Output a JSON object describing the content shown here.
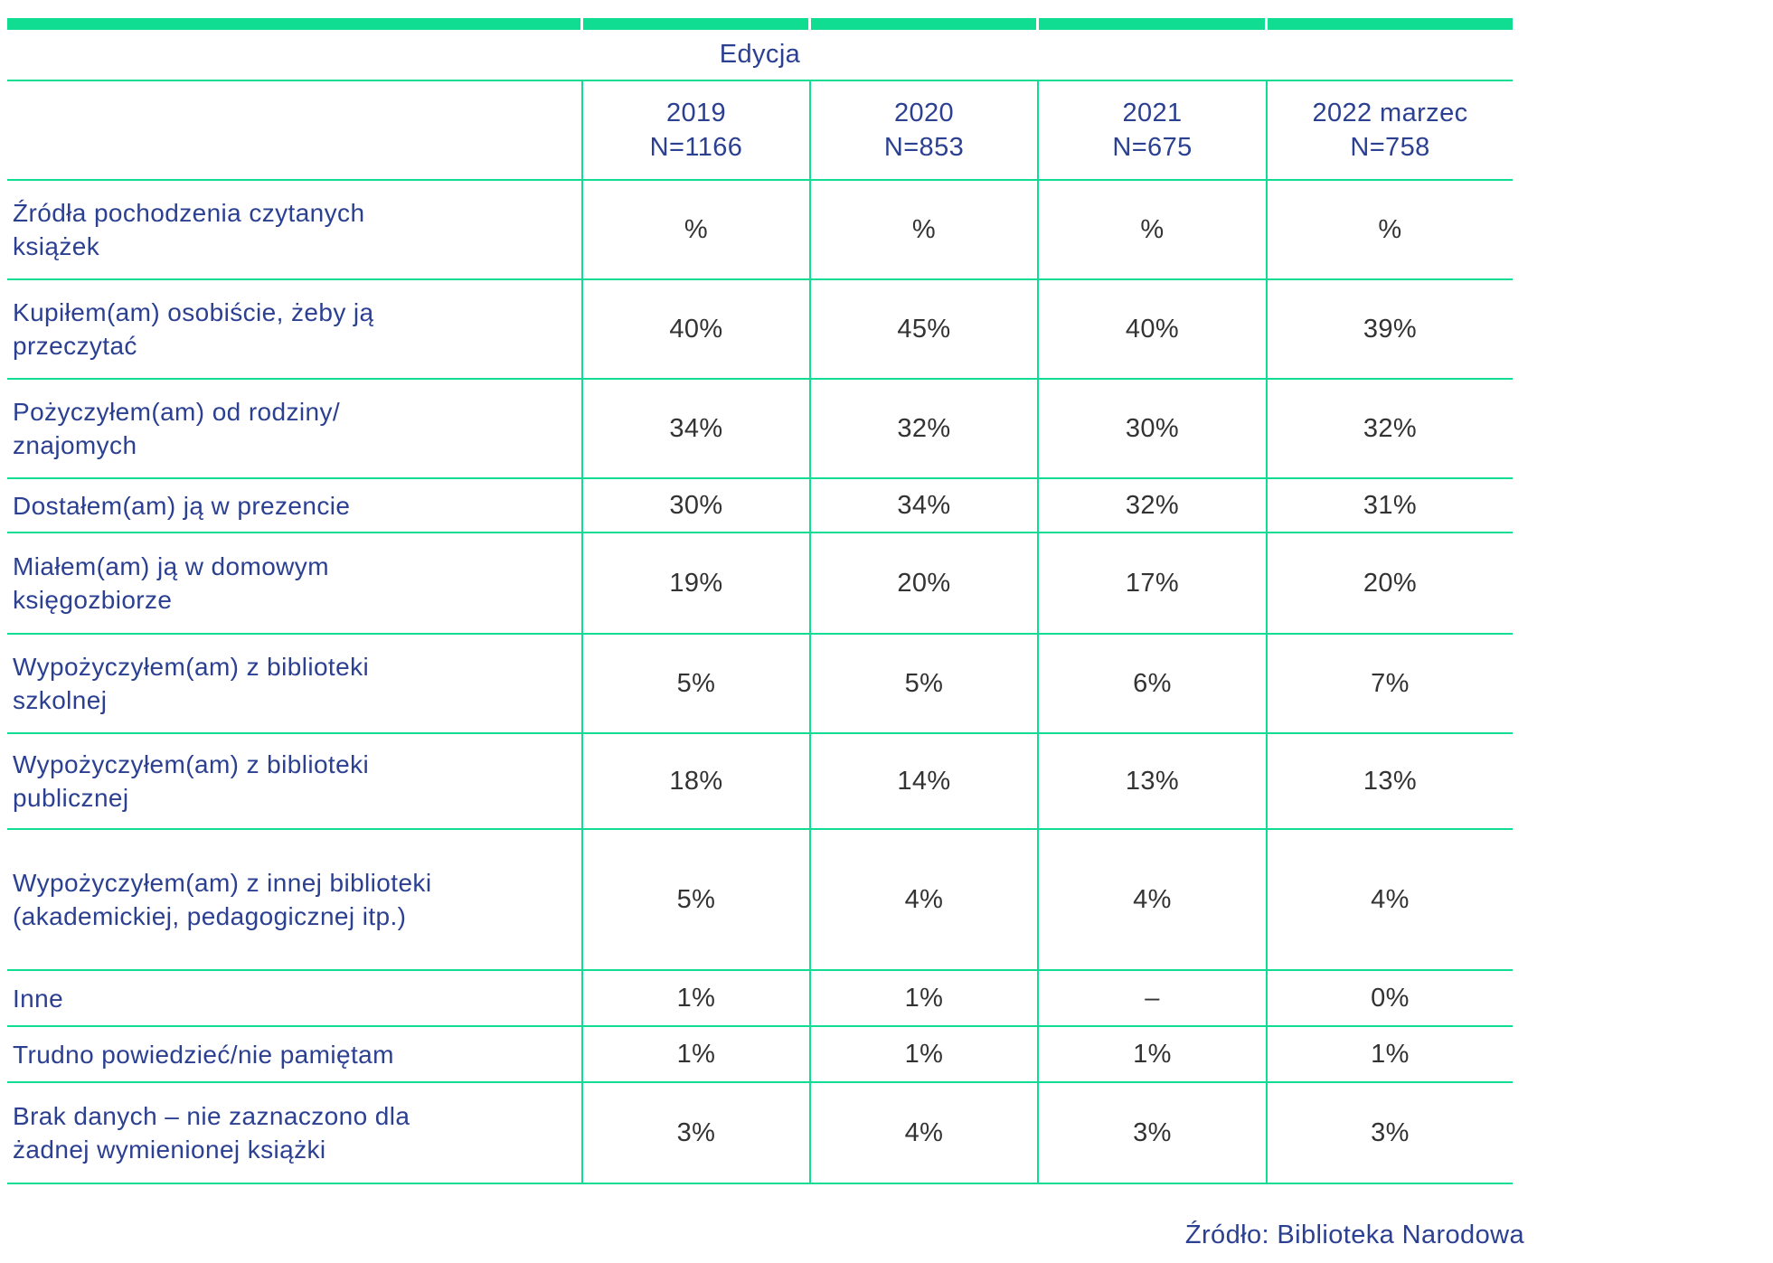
{
  "chart_data": {
    "type": "table",
    "group_header": "Edycja",
    "columns": [
      {
        "label": "2019",
        "n_label": "N=1166"
      },
      {
        "label": "2020",
        "n_label": "N=853"
      },
      {
        "label": "2021",
        "n_label": "N=675"
      },
      {
        "label": "2022 marzec",
        "n_label": "N=758"
      }
    ],
    "stub_header": "Źródła pochodzenia czytanych książek",
    "unit_row_values": [
      "%",
      "%",
      "%",
      "%"
    ],
    "rows": [
      {
        "label": "Kupiłem(am) osobiście, żeby ją przeczytać",
        "values": [
          "40%",
          "45%",
          "40%",
          "39%"
        ]
      },
      {
        "label": "Pożyczyłem(am) od rodziny/ znajomych",
        "values": [
          "34%",
          "32%",
          "30%",
          "32%"
        ]
      },
      {
        "label": "Dostałem(am) ją w prezencie",
        "values": [
          "30%",
          "34%",
          "32%",
          "31%"
        ]
      },
      {
        "label": "Miałem(am) ją w domowym księgozbiorze",
        "values": [
          "19%",
          "20%",
          "17%",
          "20%"
        ]
      },
      {
        "label": "Wypożyczyłem(am) z biblioteki szkolnej",
        "values": [
          "5%",
          "5%",
          "6%",
          "7%"
        ]
      },
      {
        "label": "Wypożyczyłem(am) z biblioteki publicznej",
        "values": [
          "18%",
          "14%",
          "13%",
          "13%"
        ]
      },
      {
        "label": "Wypożyczyłem(am) z innej biblioteki (akademickiej, pedagogicznej itp.)",
        "values": [
          "5%",
          "4%",
          "4%",
          "4%"
        ]
      },
      {
        "label": "Inne",
        "values": [
          "1%",
          "1%",
          "–",
          "0%"
        ]
      },
      {
        "label": "Trudno powiedzieć/nie pamiętam",
        "values": [
          "1%",
          "1%",
          "1%",
          "1%"
        ]
      },
      {
        "label": "Brak danych – nie zaznaczono dla żadnej wymienionej książki",
        "values": [
          "3%",
          "4%",
          "3%",
          "3%"
        ]
      }
    ],
    "source": "Źródło: Biblioteka Narodowa"
  },
  "colors": {
    "accent_green": "#10DD92",
    "heading_navy": "#2C4092",
    "value_gray": "#333333"
  }
}
